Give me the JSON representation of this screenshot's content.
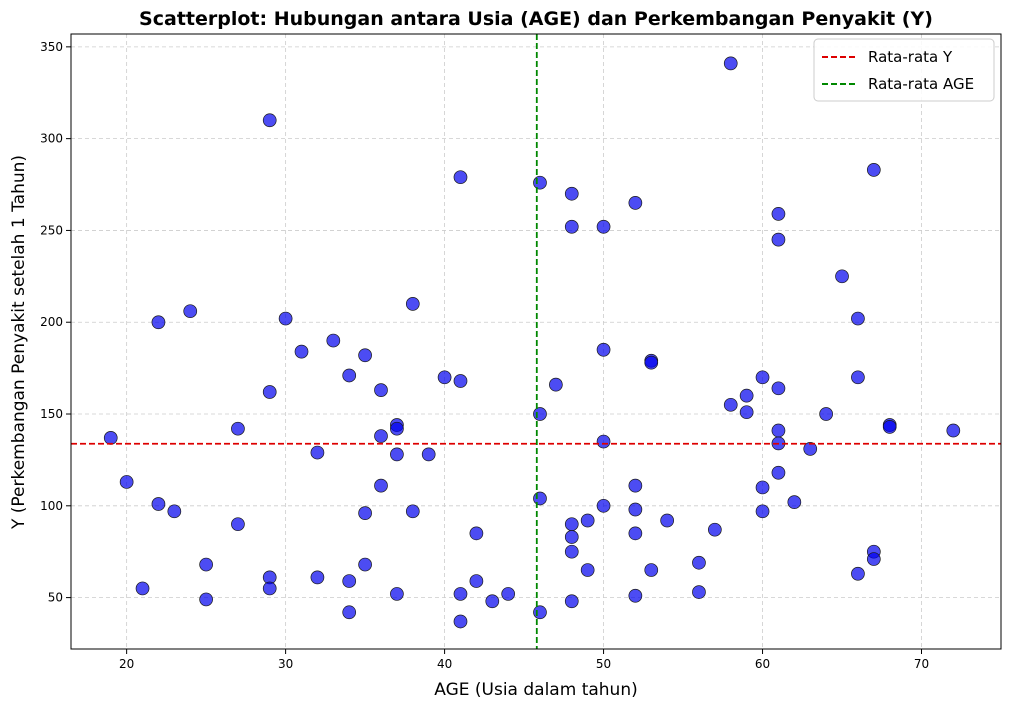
{
  "chart_data": {
    "type": "scatter",
    "title": "Scatterplot: Hubungan antara Usia (AGE) dan Perkembangan Penyakit (Y)",
    "xlabel": "AGE (Usia dalam tahun)",
    "ylabel": "Y (Perkembangan Penyakit setelah 1 Tahun)",
    "xlim": [
      16.5,
      75
    ],
    "ylim": [
      22,
      357
    ],
    "xticks": [
      20,
      30,
      40,
      50,
      60,
      70
    ],
    "yticks": [
      50,
      100,
      150,
      200,
      250,
      300,
      350
    ],
    "grid": true,
    "legend_position": "top-right",
    "point_color": "#0000ee",
    "mean_y": 133.8,
    "mean_age": 45.8,
    "mean_y_label": "Rata-rata Y",
    "mean_age_label": "Rata-rata AGE",
    "mean_y_color": "#dd0000",
    "mean_age_color": "#008800",
    "points": [
      [
        19,
        137
      ],
      [
        20,
        113
      ],
      [
        21,
        55
      ],
      [
        22,
        200
      ],
      [
        22,
        101
      ],
      [
        23,
        97
      ],
      [
        24,
        206
      ],
      [
        25,
        68
      ],
      [
        25,
        49
      ],
      [
        27,
        142
      ],
      [
        27,
        90
      ],
      [
        29,
        310
      ],
      [
        29,
        162
      ],
      [
        29,
        61
      ],
      [
        29,
        55
      ],
      [
        30,
        202
      ],
      [
        31,
        184
      ],
      [
        32,
        129
      ],
      [
        32,
        61
      ],
      [
        33,
        190
      ],
      [
        34,
        171
      ],
      [
        34,
        59
      ],
      [
        34,
        42
      ],
      [
        35,
        182
      ],
      [
        35,
        96
      ],
      [
        35,
        68
      ],
      [
        36,
        163
      ],
      [
        36,
        138
      ],
      [
        36,
        111
      ],
      [
        37,
        144
      ],
      [
        37,
        142
      ],
      [
        37,
        128
      ],
      [
        37,
        52
      ],
      [
        38,
        210
      ],
      [
        38,
        97
      ],
      [
        39,
        128
      ],
      [
        40,
        170
      ],
      [
        41,
        279
      ],
      [
        41,
        168
      ],
      [
        41,
        52
      ],
      [
        41,
        37
      ],
      [
        42,
        85
      ],
      [
        42,
        59
      ],
      [
        43,
        48
      ],
      [
        44,
        52
      ],
      [
        46,
        276
      ],
      [
        46,
        150
      ],
      [
        46,
        104
      ],
      [
        46,
        42
      ],
      [
        47,
        166
      ],
      [
        48,
        270
      ],
      [
        48,
        252
      ],
      [
        48,
        90
      ],
      [
        48,
        83
      ],
      [
        48,
        75
      ],
      [
        48,
        48
      ],
      [
        49,
        92
      ],
      [
        49,
        65
      ],
      [
        50,
        252
      ],
      [
        50,
        185
      ],
      [
        50,
        135
      ],
      [
        50,
        100
      ],
      [
        52,
        265
      ],
      [
        52,
        111
      ],
      [
        52,
        98
      ],
      [
        52,
        85
      ],
      [
        52,
        51
      ],
      [
        53,
        179
      ],
      [
        53,
        178
      ],
      [
        53,
        65
      ],
      [
        54,
        92
      ],
      [
        56,
        69
      ],
      [
        56,
        53
      ],
      [
        57,
        87
      ],
      [
        58,
        341
      ],
      [
        58,
        155
      ],
      [
        59,
        160
      ],
      [
        59,
        151
      ],
      [
        60,
        170
      ],
      [
        60,
        110
      ],
      [
        60,
        97
      ],
      [
        61,
        259
      ],
      [
        61,
        245
      ],
      [
        61,
        164
      ],
      [
        61,
        141
      ],
      [
        61,
        134
      ],
      [
        61,
        118
      ],
      [
        62,
        102
      ],
      [
        63,
        131
      ],
      [
        64,
        150
      ],
      [
        65,
        225
      ],
      [
        66,
        202
      ],
      [
        66,
        170
      ],
      [
        66,
        63
      ],
      [
        67,
        283
      ],
      [
        67,
        75
      ],
      [
        67,
        71
      ],
      [
        68,
        144
      ],
      [
        68,
        143
      ],
      [
        72,
        141
      ]
    ]
  }
}
